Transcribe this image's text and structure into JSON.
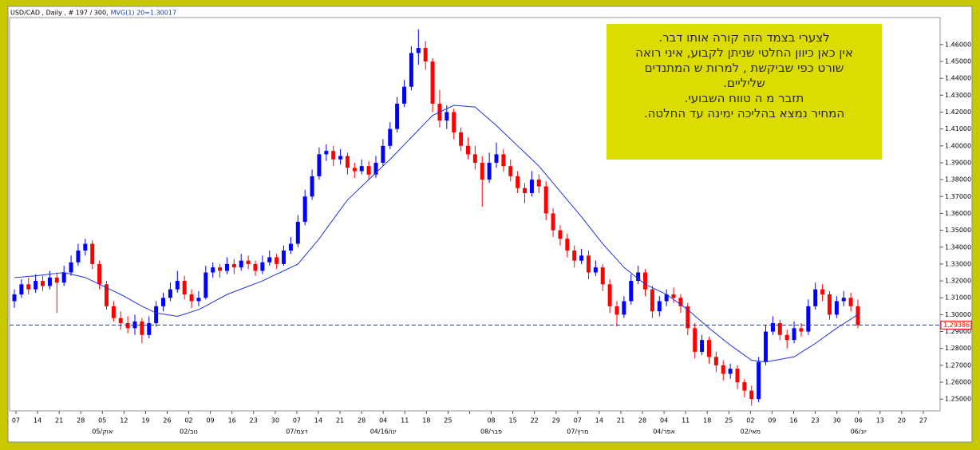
{
  "chart_data": {
    "type": "candlestick",
    "title": "USD/CAD , Daily , # 197 / 300,",
    "indicator_label": "MVG(1) 20=1.30017",
    "annotation": {
      "lines": [
        "לצערי  בצמד הזה קורה אותו דבר.",
        "אין כאן כיוון החלטי שניתן  לקבוע, איני רואה",
        "שורט כפי שביקשת , למרות ש המתנדים",
        "שליליים.",
        "תזבר מ ה טווח השבועי.",
        "המחיר נמצא  בהליכה ימינה עד החלטה."
      ]
    },
    "x_labels": [
      "07",
      "14",
      "21",
      "28",
      "05",
      "12",
      "19",
      "26",
      "02",
      "09",
      "16",
      "23",
      "30",
      "07",
      "14",
      "21",
      "28",
      "04",
      "11",
      "18",
      "25",
      null,
      "08",
      "15",
      "22",
      "29",
      "07",
      "14",
      "21",
      "28",
      "04",
      "11",
      "18",
      "25",
      "02",
      "09",
      "16",
      "23",
      "30",
      "06",
      "13",
      "20",
      "27"
    ],
    "period_labels": [
      null,
      null,
      null,
      null,
      "05/אוק",
      null,
      null,
      null,
      "02/נוב",
      null,
      null,
      null,
      null,
      "07/דצמ",
      null,
      null,
      null,
      "04/16/ינו",
      null,
      null,
      null,
      null,
      "08/פבר",
      null,
      null,
      null,
      "07/מרץ",
      null,
      null,
      null,
      "04/אפר",
      null,
      null,
      null,
      "02/מאי",
      null,
      null,
      null,
      null,
      "06/יונ",
      null,
      null,
      null
    ],
    "up_color": "#0000ff",
    "down_color": "#ff0000",
    "ohlc": [
      [
        1.308,
        1.315,
        1.304,
        1.312
      ],
      [
        1.312,
        1.321,
        1.31,
        1.318
      ],
      [
        1.318,
        1.322,
        1.312,
        1.315
      ],
      [
        1.315,
        1.324,
        1.313,
        1.32
      ],
      [
        1.32,
        1.323,
        1.314,
        1.317
      ],
      [
        1.317,
        1.326,
        1.315,
        1.322
      ],
      [
        1.322,
        1.325,
        1.301,
        1.319
      ],
      [
        1.319,
        1.329,
        1.317,
        1.325
      ],
      [
        1.325,
        1.335,
        1.323,
        1.331
      ],
      [
        1.331,
        1.342,
        1.329,
        1.338
      ],
      [
        1.338,
        1.345,
        1.335,
        1.342
      ],
      [
        1.342,
        1.344,
        1.327,
        1.33
      ],
      [
        1.33,
        1.332,
        1.315,
        1.318
      ],
      [
        1.318,
        1.32,
        1.303,
        1.305
      ],
      [
        1.305,
        1.308,
        1.296,
        1.298
      ],
      [
        1.298,
        1.302,
        1.291,
        1.295
      ],
      [
        1.295,
        1.299,
        1.289,
        1.292
      ],
      [
        1.292,
        1.3,
        1.288,
        1.296
      ],
      [
        1.296,
        1.298,
        1.283,
        1.288
      ],
      [
        1.288,
        1.299,
        1.286,
        1.295
      ],
      [
        1.295,
        1.308,
        1.293,
        1.305
      ],
      [
        1.305,
        1.313,
        1.302,
        1.31
      ],
      [
        1.31,
        1.319,
        1.308,
        1.315
      ],
      [
        1.315,
        1.326,
        1.313,
        1.32
      ],
      [
        1.32,
        1.323,
        1.309,
        1.312
      ],
      [
        1.312,
        1.315,
        1.304,
        1.308
      ],
      [
        1.308,
        1.314,
        1.305,
        1.31
      ],
      [
        1.31,
        1.329,
        1.309,
        1.325
      ],
      [
        1.325,
        1.331,
        1.322,
        1.328
      ],
      [
        1.328,
        1.33,
        1.322,
        1.326
      ],
      [
        1.326,
        1.334,
        1.324,
        1.33
      ],
      [
        1.33,
        1.333,
        1.324,
        1.328
      ],
      [
        1.328,
        1.336,
        1.326,
        1.332
      ],
      [
        1.332,
        1.335,
        1.327,
        1.33
      ],
      [
        1.33,
        1.332,
        1.323,
        1.326
      ],
      [
        1.326,
        1.335,
        1.324,
        1.331
      ],
      [
        1.331,
        1.338,
        1.329,
        1.334
      ],
      [
        1.334,
        1.336,
        1.327,
        1.33
      ],
      [
        1.33,
        1.341,
        1.329,
        1.338
      ],
      [
        1.338,
        1.346,
        1.336,
        1.342
      ],
      [
        1.342,
        1.359,
        1.34,
        1.355
      ],
      [
        1.355,
        1.374,
        1.353,
        1.37
      ],
      [
        1.37,
        1.386,
        1.368,
        1.382
      ],
      [
        1.382,
        1.399,
        1.38,
        1.395
      ],
      [
        1.395,
        1.401,
        1.391,
        1.397
      ],
      [
        1.397,
        1.4,
        1.388,
        1.392
      ],
      [
        1.392,
        1.398,
        1.389,
        1.394
      ],
      [
        1.394,
        1.396,
        1.383,
        1.387
      ],
      [
        1.387,
        1.39,
        1.381,
        1.385
      ],
      [
        1.385,
        1.392,
        1.383,
        1.388
      ],
      [
        1.388,
        1.391,
        1.38,
        1.383
      ],
      [
        1.383,
        1.394,
        1.381,
        1.39
      ],
      [
        1.39,
        1.404,
        1.388,
        1.4
      ],
      [
        1.4,
        1.414,
        1.398,
        1.41
      ],
      [
        1.41,
        1.429,
        1.408,
        1.425
      ],
      [
        1.425,
        1.439,
        1.423,
        1.435
      ],
      [
        1.435,
        1.459,
        1.433,
        1.455
      ],
      [
        1.455,
        1.469,
        1.448,
        1.458
      ],
      [
        1.458,
        1.462,
        1.445,
        1.45
      ],
      [
        1.45,
        1.452,
        1.42,
        1.425
      ],
      [
        1.425,
        1.433,
        1.411,
        1.415
      ],
      [
        1.415,
        1.424,
        1.41,
        1.42
      ],
      [
        1.42,
        1.422,
        1.404,
        1.408
      ],
      [
        1.408,
        1.411,
        1.397,
        1.4
      ],
      [
        1.4,
        1.405,
        1.392,
        1.395
      ],
      [
        1.395,
        1.4,
        1.386,
        1.39
      ],
      [
        1.39,
        1.394,
        1.364,
        1.38
      ],
      [
        1.38,
        1.396,
        1.378,
        1.39
      ],
      [
        1.39,
        1.402,
        1.387,
        1.395
      ],
      [
        1.395,
        1.398,
        1.385,
        1.388
      ],
      [
        1.388,
        1.392,
        1.379,
        1.382
      ],
      [
        1.382,
        1.385,
        1.372,
        1.375
      ],
      [
        1.375,
        1.378,
        1.366,
        1.372
      ],
      [
        1.372,
        1.385,
        1.37,
        1.38
      ],
      [
        1.38,
        1.383,
        1.372,
        1.376
      ],
      [
        1.376,
        1.379,
        1.356,
        1.36
      ],
      [
        1.36,
        1.363,
        1.346,
        1.35
      ],
      [
        1.35,
        1.353,
        1.341,
        1.345
      ],
      [
        1.345,
        1.348,
        1.334,
        1.338
      ],
      [
        1.338,
        1.341,
        1.328,
        1.332
      ],
      [
        1.332,
        1.339,
        1.33,
        1.335
      ],
      [
        1.335,
        1.338,
        1.321,
        1.325
      ],
      [
        1.325,
        1.332,
        1.323,
        1.328
      ],
      [
        1.328,
        1.33,
        1.314,
        1.318
      ],
      [
        1.318,
        1.321,
        1.301,
        1.305
      ],
      [
        1.305,
        1.308,
        1.293,
        1.3
      ],
      [
        1.3,
        1.311,
        1.298,
        1.308
      ],
      [
        1.308,
        1.324,
        1.306,
        1.32
      ],
      [
        1.32,
        1.329,
        1.318,
        1.325
      ],
      [
        1.325,
        1.327,
        1.311,
        1.315
      ],
      [
        1.315,
        1.317,
        1.298,
        1.302
      ],
      [
        1.302,
        1.311,
        1.299,
        1.308
      ],
      [
        1.308,
        1.315,
        1.305,
        1.312
      ],
      [
        1.312,
        1.316,
        1.307,
        1.31
      ],
      [
        1.31,
        1.312,
        1.301,
        1.305
      ],
      [
        1.305,
        1.307,
        1.288,
        1.292
      ],
      [
        1.292,
        1.295,
        1.274,
        1.278
      ],
      [
        1.278,
        1.288,
        1.276,
        1.285
      ],
      [
        1.285,
        1.287,
        1.271,
        1.275
      ],
      [
        1.275,
        1.278,
        1.266,
        1.27
      ],
      [
        1.27,
        1.273,
        1.261,
        1.265
      ],
      [
        1.265,
        1.271,
        1.262,
        1.268
      ],
      [
        1.268,
        1.27,
        1.256,
        1.26
      ],
      [
        1.26,
        1.262,
        1.251,
        1.255
      ],
      [
        1.255,
        1.258,
        1.246,
        1.25
      ],
      [
        1.25,
        1.275,
        1.248,
        1.272
      ],
      [
        1.272,
        1.294,
        1.27,
        1.29
      ],
      [
        1.29,
        1.299,
        1.288,
        1.295
      ],
      [
        1.295,
        1.297,
        1.285,
        1.288
      ],
      [
        1.288,
        1.291,
        1.28,
        1.285
      ],
      [
        1.285,
        1.296,
        1.283,
        1.292
      ],
      [
        1.292,
        1.295,
        1.287,
        1.29
      ],
      [
        1.29,
        1.309,
        1.288,
        1.305
      ],
      [
        1.305,
        1.319,
        1.303,
        1.315
      ],
      [
        1.315,
        1.318,
        1.308,
        1.312
      ],
      [
        1.312,
        1.314,
        1.297,
        1.3
      ],
      [
        1.3,
        1.311,
        1.298,
        1.308
      ],
      [
        1.308,
        1.314,
        1.305,
        1.31
      ],
      [
        1.31,
        1.313,
        1.302,
        1.305
      ],
      [
        1.305,
        1.309,
        1.292,
        1.2938
      ]
    ],
    "ma": {
      "color": "#2233dd",
      "values": [
        1.322,
        1.3223,
        1.3227,
        1.323,
        1.3235,
        1.324,
        1.3245,
        1.325,
        1.324,
        1.323,
        1.322,
        1.32,
        1.318,
        1.316,
        1.314,
        1.312,
        1.3097,
        1.3073,
        1.305,
        1.303,
        1.301,
        1.3003,
        1.2997,
        1.299,
        1.3003,
        1.3017,
        1.303,
        1.3052,
        1.3075,
        1.3097,
        1.312,
        1.3136,
        1.3152,
        1.3168,
        1.3184,
        1.32,
        1.322,
        1.324,
        1.326,
        1.328,
        1.33,
        1.335,
        1.34,
        1.345,
        1.3508,
        1.3565,
        1.3623,
        1.368,
        1.372,
        1.376,
        1.38,
        1.384,
        1.388,
        1.392,
        1.3963,
        1.4007,
        1.405,
        1.4093,
        1.4137,
        1.418,
        1.42,
        1.422,
        1.424,
        1.4237,
        1.4233,
        1.423,
        1.4193,
        1.4157,
        1.412,
        1.408,
        1.404,
        1.4,
        1.396,
        1.392,
        1.388,
        1.383,
        1.378,
        1.373,
        1.368,
        1.363,
        1.358,
        1.3527,
        1.3473,
        1.342,
        1.3373,
        1.3327,
        1.328,
        1.3247,
        1.3213,
        1.318,
        1.316,
        1.314,
        1.312,
        1.309,
        1.306,
        1.303,
        1.2993,
        1.2957,
        1.292,
        1.2887,
        1.2853,
        1.282,
        1.279,
        1.276,
        1.273,
        1.2725,
        1.272,
        1.2728,
        1.2735,
        1.2743,
        1.275,
        1.2777,
        1.2803,
        1.283,
        1.286,
        1.289,
        1.292,
        1.2947,
        1.2973,
        1.30017
      ]
    },
    "last_price": {
      "value": 1.29386,
      "label": "1.29386"
    },
    "last_price_color": "#ff0000",
    "last_price_line_color": "#1a3aa8",
    "grid": false,
    "ylim": [
      1.243,
      1.476
    ],
    "yticks": [
      {
        "value": 1.46,
        "label": "1.46000"
      },
      {
        "value": 1.45,
        "label": "1.45000"
      },
      {
        "value": 1.44,
        "label": "1.44000"
      },
      {
        "value": 1.43,
        "label": "1.43000"
      },
      {
        "value": 1.42,
        "label": "1.42000"
      },
      {
        "value": 1.41,
        "label": "1.41000"
      },
      {
        "value": 1.4,
        "label": "1.40000"
      },
      {
        "value": 1.39,
        "label": "1.39000"
      },
      {
        "value": 1.38,
        "label": "1.38000"
      },
      {
        "value": 1.37,
        "label": "1.37000"
      },
      {
        "value": 1.36,
        "label": "1.36000"
      },
      {
        "value": 1.35,
        "label": "1.35000"
      },
      {
        "value": 1.34,
        "label": "1.34000"
      },
      {
        "value": 1.33,
        "label": "1.33000"
      },
      {
        "value": 1.32,
        "label": "1.32000"
      },
      {
        "value": 1.31,
        "label": "1.31000"
      },
      {
        "value": 1.3,
        "label": "1.30000"
      },
      {
        "value": 1.29,
        "label": "1.29000"
      },
      {
        "value": 1.28,
        "label": "1.28000"
      },
      {
        "value": 1.27,
        "label": "1.27000"
      },
      {
        "value": 1.26,
        "label": "1.26000"
      },
      {
        "value": 1.25,
        "label": "1.25000"
      }
    ]
  }
}
